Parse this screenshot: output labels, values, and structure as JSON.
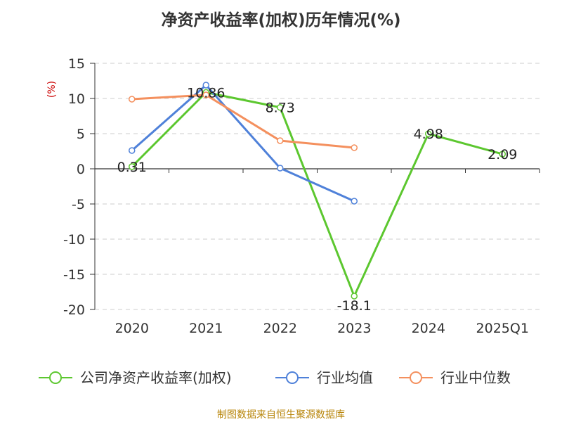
{
  "chart_data": {
    "type": "line",
    "title": "净资产收益率(加权)历年情况(%)",
    "ylabel": "(%)",
    "ylim": [
      -20,
      15
    ],
    "yticks": [
      15,
      10,
      5,
      0,
      -5,
      -10,
      -15,
      -20
    ],
    "categories": [
      "2020",
      "2021",
      "2022",
      "2023",
      "2024",
      "2025Q1"
    ],
    "grid": true,
    "legend_position": "bottom",
    "series": [
      {
        "name": "公司净资产收益率(加权)",
        "color": "#5cc72f",
        "values": [
          0.31,
          10.86,
          8.73,
          -18.1,
          4.98,
          2.09
        ],
        "labels": [
          "0.31",
          "10.86",
          "8.73",
          "-18.1",
          "4.98",
          "2.09"
        ]
      },
      {
        "name": "行业均值",
        "color": "#4f81d9",
        "values": [
          2.6,
          11.9,
          0.1,
          -4.6,
          null,
          null
        ]
      },
      {
        "name": "行业中位数",
        "color": "#f4905e",
        "values": [
          9.9,
          10.5,
          4.0,
          3.0,
          null,
          null
        ]
      }
    ]
  },
  "source": "制图数据来自恒生聚源数据库"
}
